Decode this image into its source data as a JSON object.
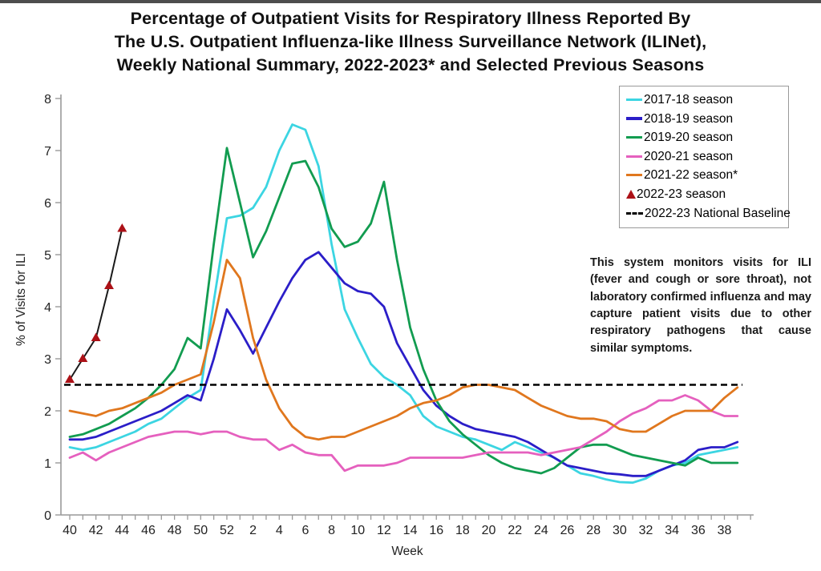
{
  "chart_data": {
    "type": "line",
    "title_lines": [
      "Percentage of Outpatient Visits for Respiratory Illness Reported By",
      "The U.S. Outpatient Influenza-like Illness Surveillance Network (ILINet),",
      "Weekly National Summary, 2022-2023* and Selected Previous Seasons"
    ],
    "xlabel": "Week",
    "ylabel": "% of Visits for ILI",
    "ylim": [
      0,
      8
    ],
    "y_ticks": [
      0,
      1,
      2,
      3,
      4,
      5,
      6,
      7,
      8
    ],
    "x_tick_labels": [
      "40",
      "42",
      "44",
      "46",
      "48",
      "50",
      "52",
      "2",
      "4",
      "6",
      "8",
      "10",
      "12",
      "14",
      "16",
      "18",
      "20",
      "22",
      "24",
      "26",
      "28",
      "30",
      "32",
      "34",
      "36",
      "38"
    ],
    "weeks": [
      "40",
      "41",
      "42",
      "43",
      "44",
      "45",
      "46",
      "47",
      "48",
      "49",
      "50",
      "51",
      "52",
      "1",
      "2",
      "3",
      "4",
      "5",
      "6",
      "7",
      "8",
      "9",
      "10",
      "11",
      "12",
      "13",
      "14",
      "15",
      "16",
      "17",
      "18",
      "19",
      "20",
      "21",
      "22",
      "23",
      "24",
      "25",
      "26",
      "27",
      "28",
      "29",
      "30",
      "31",
      "32",
      "33",
      "34",
      "35",
      "36",
      "37",
      "38",
      "39"
    ],
    "grid": false,
    "legend_position": "upper right",
    "series": [
      {
        "name": "2017-18 season",
        "color": "#3cd5e2",
        "values": [
          1.3,
          1.25,
          1.3,
          1.4,
          1.5,
          1.6,
          1.75,
          1.85,
          2.05,
          2.25,
          2.4,
          4.1,
          5.7,
          5.75,
          5.9,
          6.3,
          7.0,
          7.5,
          7.4,
          6.7,
          5.2,
          3.95,
          3.4,
          2.9,
          2.65,
          2.5,
          2.3,
          1.9,
          1.7,
          1.6,
          1.5,
          1.45,
          1.35,
          1.25,
          1.4,
          1.3,
          1.2,
          1.1,
          0.95,
          0.8,
          0.75,
          0.68,
          0.63,
          0.62,
          0.7,
          0.85,
          0.95,
          1.0,
          1.15,
          1.2,
          1.25,
          1.3
        ]
      },
      {
        "name": "2018-19 season",
        "color": "#2b1ec8",
        "values": [
          1.45,
          1.45,
          1.5,
          1.6,
          1.7,
          1.8,
          1.9,
          2.0,
          2.15,
          2.3,
          2.2,
          3.0,
          3.95,
          3.55,
          3.1,
          3.6,
          4.1,
          4.55,
          4.9,
          5.05,
          4.75,
          4.45,
          4.3,
          4.25,
          4.0,
          3.3,
          2.85,
          2.4,
          2.1,
          1.9,
          1.75,
          1.65,
          1.6,
          1.55,
          1.5,
          1.4,
          1.25,
          1.1,
          0.95,
          0.9,
          0.85,
          0.8,
          0.78,
          0.75,
          0.75,
          0.85,
          0.95,
          1.05,
          1.25,
          1.3,
          1.3,
          1.4
        ]
      },
      {
        "name": "2019-20 season",
        "color": "#129c50",
        "values": [
          1.5,
          1.55,
          1.65,
          1.75,
          1.9,
          2.05,
          2.25,
          2.5,
          2.8,
          3.4,
          3.2,
          5.2,
          7.05,
          6.0,
          4.95,
          5.45,
          6.1,
          6.75,
          6.8,
          6.3,
          5.5,
          5.15,
          5.25,
          5.6,
          6.4,
          4.9,
          3.6,
          2.8,
          2.2,
          1.8,
          1.55,
          1.35,
          1.15,
          1.0,
          0.9,
          0.85,
          0.8,
          0.9,
          1.1,
          1.3,
          1.35,
          1.35,
          1.25,
          1.15,
          1.1,
          1.05,
          1.0,
          0.95,
          1.1,
          1.0,
          1.0,
          1.0
        ]
      },
      {
        "name": "2020-21 season",
        "color": "#e560be",
        "values": [
          1.1,
          1.2,
          1.05,
          1.2,
          1.3,
          1.4,
          1.5,
          1.55,
          1.6,
          1.6,
          1.55,
          1.6,
          1.6,
          1.5,
          1.45,
          1.45,
          1.25,
          1.35,
          1.2,
          1.15,
          1.15,
          0.85,
          0.95,
          0.95,
          0.95,
          1.0,
          1.1,
          1.1,
          1.1,
          1.1,
          1.1,
          1.15,
          1.2,
          1.2,
          1.2,
          1.2,
          1.15,
          1.2,
          1.25,
          1.3,
          1.45,
          1.6,
          1.8,
          1.95,
          2.05,
          2.2,
          2.2,
          2.3,
          2.2,
          2.0,
          1.9,
          1.9
        ]
      },
      {
        "name": "2021-22 season*",
        "color": "#e0771e",
        "values": [
          2.0,
          1.95,
          1.9,
          2.0,
          2.05,
          2.15,
          2.25,
          2.35,
          2.5,
          2.6,
          2.7,
          3.7,
          4.9,
          4.55,
          3.4,
          2.6,
          2.05,
          1.7,
          1.5,
          1.45,
          1.5,
          1.5,
          1.6,
          1.7,
          1.8,
          1.9,
          2.05,
          2.15,
          2.2,
          2.3,
          2.45,
          2.5,
          2.5,
          2.45,
          2.4,
          2.25,
          2.1,
          2.0,
          1.9,
          1.85,
          1.85,
          1.8,
          1.65,
          1.6,
          1.6,
          1.75,
          1.9,
          2.0,
          2.0,
          2.0,
          2.25,
          2.45
        ]
      },
      {
        "name": "2022-23 season",
        "color": "#1a1a1a",
        "marker": "triangle",
        "marker_color": "#ac1117",
        "values": [
          2.6,
          3.0,
          3.4,
          4.4,
          5.5
        ]
      }
    ],
    "baseline": {
      "label": "2022-23 National Baseline",
      "value": 2.5,
      "color": "#000000",
      "style": "dashed"
    },
    "legend": [
      {
        "label": "2017-18 season",
        "swatch": "line",
        "color": "#3cd5e2"
      },
      {
        "label": "2018-19 season",
        "swatch": "line",
        "color": "#2b1ec8"
      },
      {
        "label": "2019-20 season",
        "swatch": "line",
        "color": "#129c50"
      },
      {
        "label": "2020-21 season",
        "swatch": "line",
        "color": "#e560be"
      },
      {
        "label": "2021-22 season*",
        "swatch": "line",
        "color": "#e0771e"
      },
      {
        "label": "2022-23 season",
        "swatch": "triangle",
        "color": "#ac1117"
      },
      {
        "label": "2022-23 National Baseline",
        "swatch": "dashed",
        "color": "#000000"
      }
    ],
    "annotation": "This system monitors visits for ILI (fever and cough or sore throat), not laboratory confirmed influenza and may capture patient visits due to other respiratory pathogens that cause similar symptoms."
  }
}
